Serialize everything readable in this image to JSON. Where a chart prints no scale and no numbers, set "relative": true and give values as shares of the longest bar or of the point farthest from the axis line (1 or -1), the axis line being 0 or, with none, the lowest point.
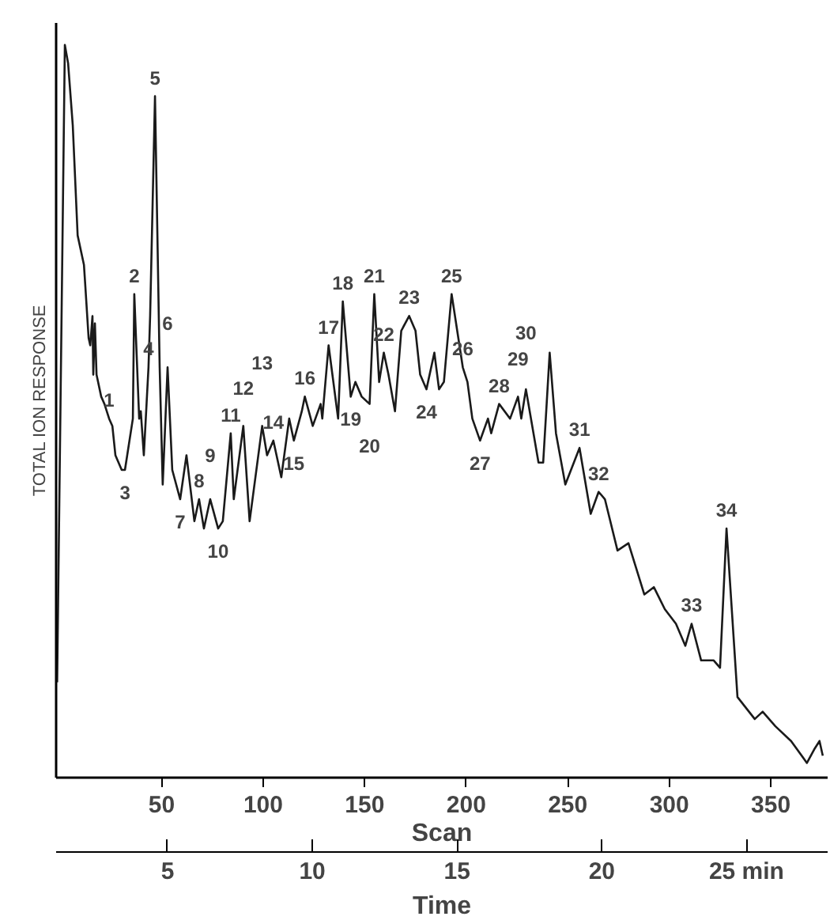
{
  "chart_data": {
    "type": "line",
    "relative": true,
    "xlabel": "Scan",
    "ylabel": "TOTAL ION RESPONSE",
    "x2label": "Time",
    "xlim": [
      -2,
      378
    ],
    "xticks": [
      50,
      100,
      150,
      200,
      250,
      300,
      350
    ],
    "x2lim": [
      1.15,
      27.8
    ],
    "x2ticks": [
      5,
      10,
      15,
      20,
      {
        "value": 25,
        "label": "25 min"
      }
    ],
    "grid": false,
    "series": [
      {
        "color": "#1a1a1a",
        "x": [
          -1.5,
          2.3,
          3.9,
          6.2,
          7.8,
          8.6,
          11.7,
          12.4,
          14.0,
          14.8,
          15.9,
          16.3,
          17.1,
          17.9,
          20.2,
          21.8,
          24.1,
          25.7,
          27.2,
          30.3,
          31.9,
          35.8,
          36.5,
          38.9,
          39.7,
          41.2,
          43.5,
          44.3,
          46.7,
          49.0,
          50.5,
          52.9,
          55.2,
          59.1,
          62.2,
          66.1,
          68.4,
          70.8,
          73.9,
          77.8,
          80.1,
          84.0,
          85.5,
          90.2,
          93.3,
          99.5,
          101.9,
          105.0,
          108.9,
          112.8,
          115.1,
          119.0,
          120.5,
          124.4,
          128.3,
          129.1,
          132.2,
          136.9,
          139.2,
          143.1,
          145.4,
          148.5,
          152.4,
          154.7,
          157.1,
          159.4,
          161.7,
          164.9,
          168.0,
          171.9,
          175.0,
          177.3,
          180.4,
          184.3,
          186.6,
          189.0,
          192.8,
          198.3,
          200.6,
          203.0,
          206.8,
          210.7,
          212.3,
          216.2,
          221.6,
          225.5,
          227.1,
          229.4,
          235.6,
          237.9,
          241.1,
          244.2,
          248.8,
          255.8,
          261.3,
          265.2,
          268.3,
          274.5,
          279.9,
          287.7,
          292.4,
          297.8,
          303.3,
          307.9,
          311.0,
          315.7,
          321.9,
          325.0,
          328.2,
          333.6,
          342.1,
          346.0,
          352.3,
          360.0,
          367.8,
          371.7,
          374.0,
          375.6
        ],
        "values": [
          0.13,
          1.0,
          0.975,
          0.89,
          0.79,
          0.74,
          0.7,
          0.67,
          0.6,
          0.59,
          0.63,
          0.55,
          0.62,
          0.55,
          0.52,
          0.51,
          0.49,
          0.48,
          0.44,
          0.42,
          0.42,
          0.49,
          0.66,
          0.49,
          0.5,
          0.44,
          0.56,
          0.63,
          0.93,
          0.56,
          0.4,
          0.56,
          0.42,
          0.38,
          0.44,
          0.35,
          0.38,
          0.34,
          0.38,
          0.34,
          0.35,
          0.47,
          0.38,
          0.48,
          0.35,
          0.48,
          0.44,
          0.46,
          0.41,
          0.49,
          0.46,
          0.5,
          0.52,
          0.48,
          0.51,
          0.49,
          0.59,
          0.49,
          0.65,
          0.52,
          0.54,
          0.52,
          0.51,
          0.66,
          0.54,
          0.58,
          0.55,
          0.5,
          0.61,
          0.63,
          0.61,
          0.55,
          0.53,
          0.58,
          0.53,
          0.54,
          0.66,
          0.56,
          0.54,
          0.49,
          0.46,
          0.49,
          0.47,
          0.51,
          0.49,
          0.52,
          0.49,
          0.53,
          0.43,
          0.43,
          0.58,
          0.47,
          0.4,
          0.45,
          0.36,
          0.39,
          0.38,
          0.31,
          0.32,
          0.25,
          0.26,
          0.23,
          0.21,
          0.18,
          0.21,
          0.16,
          0.16,
          0.15,
          0.34,
          0.11,
          0.08,
          0.09,
          0.07,
          0.05,
          0.02,
          0.04,
          0.05,
          0.03
        ]
      }
    ],
    "annotations": [
      {
        "text": "1",
        "x": 24.1,
        "y": 0.49
      },
      {
        "text": "2",
        "x": 36.5,
        "y": 0.66
      },
      {
        "text": "3",
        "x": 31.9,
        "y": 0.42
      },
      {
        "text": "4",
        "x": 43.5,
        "y": 0.56
      },
      {
        "text": "5",
        "x": 46.7,
        "y": 0.93
      },
      {
        "text": "6",
        "x": 52.9,
        "y": 0.56
      },
      {
        "text": "7",
        "x": 59.1,
        "y": 0.38
      },
      {
        "text": "8",
        "x": 68.4,
        "y": 0.38
      },
      {
        "text": "9",
        "x": 73.9,
        "y": 0.38
      },
      {
        "text": "10",
        "x": 77.8,
        "y": 0.34
      },
      {
        "text": "11",
        "x": 84.0,
        "y": 0.47
      },
      {
        "text": "12",
        "x": 90.2,
        "y": 0.48
      },
      {
        "text": "13",
        "x": 99.5,
        "y": 0.48
      },
      {
        "text": "14",
        "x": 105.0,
        "y": 0.46
      },
      {
        "text": "15",
        "x": 115.1,
        "y": 0.46
      },
      {
        "text": "16",
        "x": 120.5,
        "y": 0.52
      },
      {
        "text": "17",
        "x": 132.2,
        "y": 0.59
      },
      {
        "text": "18",
        "x": 139.2,
        "y": 0.65
      },
      {
        "text": "19",
        "x": 143.1,
        "y": 0.52
      },
      {
        "text": "20",
        "x": 152.4,
        "y": 0.51
      },
      {
        "text": "21",
        "x": 154.7,
        "y": 0.66
      },
      {
        "text": "22",
        "x": 159.4,
        "y": 0.58
      },
      {
        "text": "23",
        "x": 171.9,
        "y": 0.63
      },
      {
        "text": "24",
        "x": 180.4,
        "y": 0.53
      },
      {
        "text": "25",
        "x": 192.8,
        "y": 0.66
      },
      {
        "text": "26",
        "x": 198.3,
        "y": 0.56
      },
      {
        "text": "27",
        "x": 206.8,
        "y": 0.46
      },
      {
        "text": "28",
        "x": 216.2,
        "y": 0.51
      },
      {
        "text": "29",
        "x": 225.5,
        "y": 0.52
      },
      {
        "text": "30",
        "x": 229.4,
        "y": 0.53
      },
      {
        "text": "31",
        "x": 255.8,
        "y": 0.45
      },
      {
        "text": "32",
        "x": 265.2,
        "y": 0.39
      },
      {
        "text": "33",
        "x": 311.0,
        "y": 0.21
      },
      {
        "text": "34",
        "x": 328.2,
        "y": 0.34
      }
    ]
  }
}
